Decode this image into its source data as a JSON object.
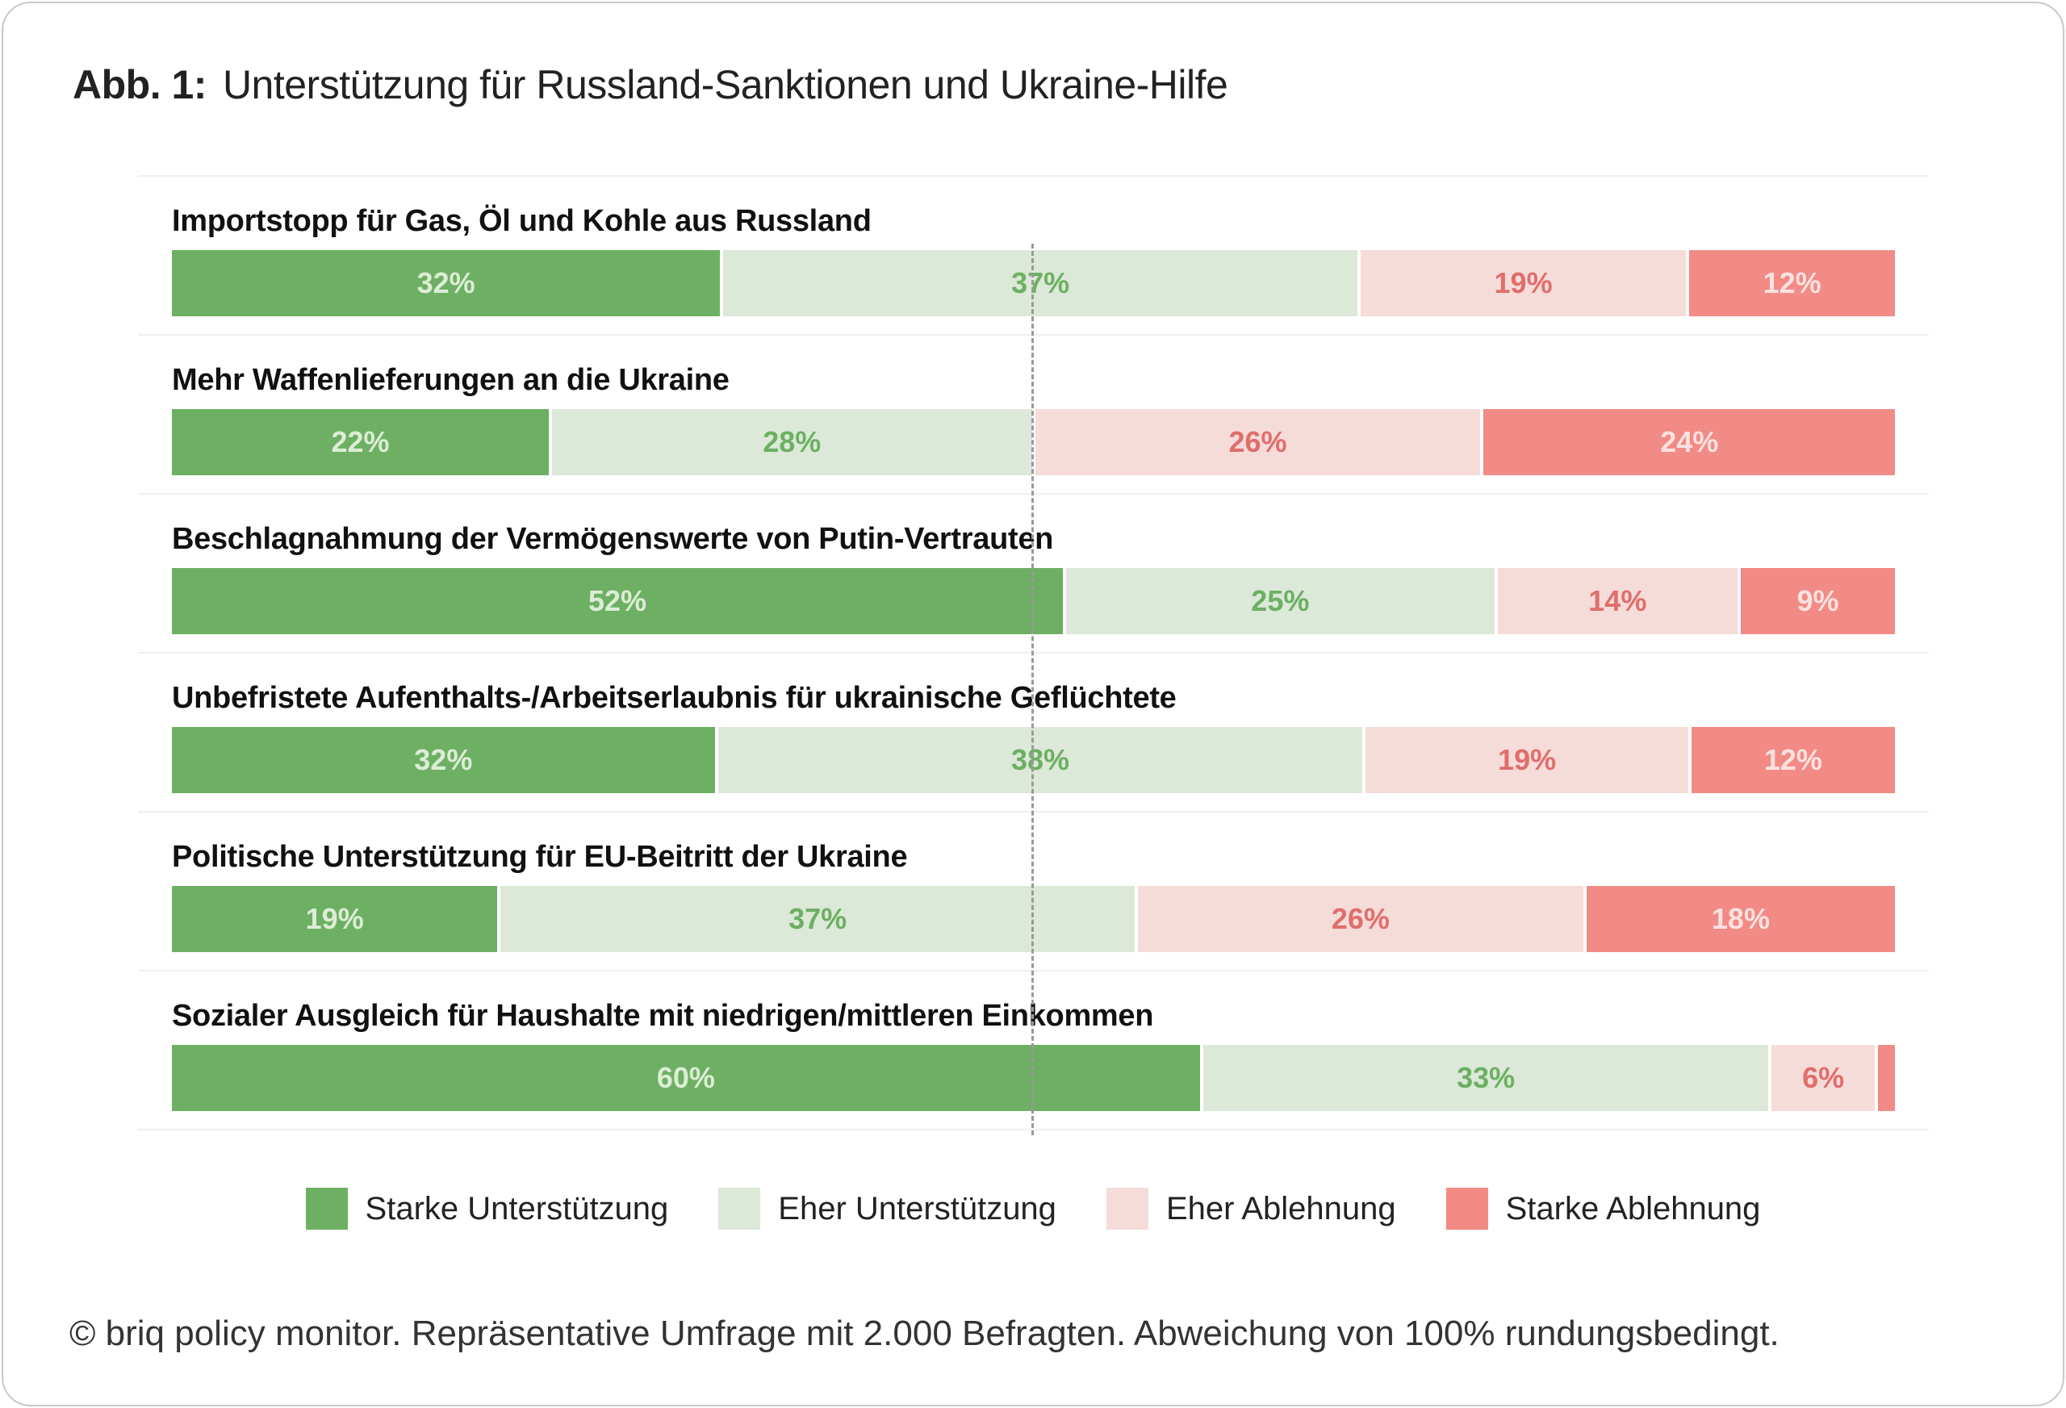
{
  "title_prefix": "Abb. 1:",
  "title": "Unterstützung für Russland-Sanktionen und Ukraine-Hilfe",
  "footer": "© briq policy monitor. Repräsentative Umfrage mit 2.000 Befragten. Abweichung von 100% rundungsbedingt.",
  "chart_data": {
    "type": "bar",
    "orientation": "horizontal",
    "stacked": true,
    "title": "Unterstützung für Russland-Sanktionen und Ukraine-Hilfe",
    "categories": [
      "Importstopp für Gas, Öl und Kohle aus Russland",
      "Mehr Waffenlieferungen an die Ukraine",
      "Beschlagnahmung der Vermögenswerte von Putin-Vertrauten",
      "Unbefristete Aufenthalts-/Arbeitserlaubnis für ukrainische Geflüchtete",
      "Politische Unterstützung für EU-Beitritt der Ukraine",
      "Sozialer Ausgleich für Haushalte mit niedrigen/mittleren Einkommen"
    ],
    "unit": "%",
    "series": [
      {
        "name": "Starke Unterstützung",
        "color": "#6db063",
        "values": [
          32,
          22,
          52,
          32,
          19,
          60
        ]
      },
      {
        "name": "Eher Unterstützung",
        "color": "#dce8d8",
        "values": [
          37,
          28,
          25,
          38,
          37,
          33
        ]
      },
      {
        "name": "Eher Ablehnung",
        "color": "#f5dcd9",
        "values": [
          19,
          26,
          14,
          19,
          26,
          6
        ]
      },
      {
        "name": "Starke Ablehnung",
        "color": "#f28a85",
        "values": [
          12,
          24,
          9,
          12,
          18,
          1
        ]
      }
    ],
    "labels": [
      [
        "32%",
        "37%",
        "19%",
        "12%"
      ],
      [
        "22%",
        "28%",
        "26%",
        "24%"
      ],
      [
        "52%",
        "25%",
        "14%",
        "9%"
      ],
      [
        "32%",
        "38%",
        "19%",
        "12%"
      ],
      [
        "19%",
        "37%",
        "26%",
        "18%"
      ],
      [
        "60%",
        "33%",
        "6%",
        ""
      ]
    ],
    "midline": 50,
    "legend_position": "bottom",
    "grid": false
  }
}
